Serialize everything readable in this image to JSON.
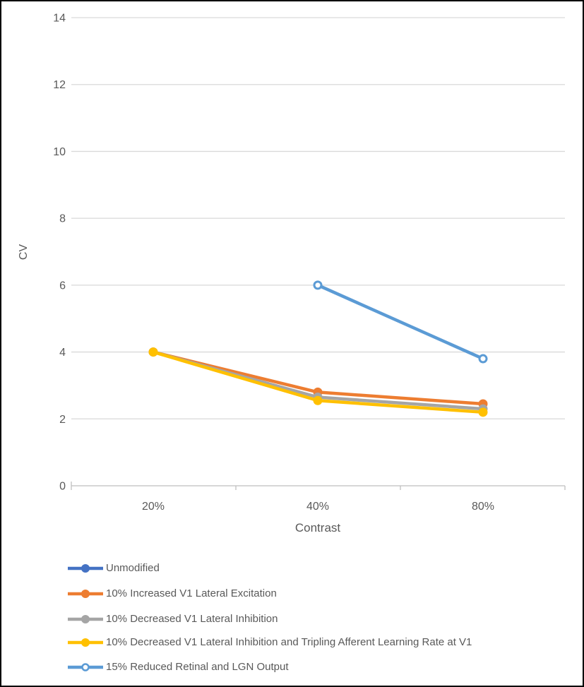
{
  "figure": {
    "background": "#ffffff",
    "border_color": "#000000"
  },
  "chart_data": {
    "type": "line",
    "title": "",
    "xlabel": "Contrast",
    "ylabel": "CV",
    "categories": [
      "20%",
      "40%",
      "80%"
    ],
    "ylim": [
      0,
      14
    ],
    "yticks": [
      0,
      2,
      4,
      6,
      8,
      10,
      12,
      14
    ],
    "grid": true,
    "legend_position": "bottom-left",
    "gridline_color": "#D9D9D9",
    "axis_line_color": "#BFBFBF",
    "axis_text_color": "#595959",
    "series": [
      {
        "name": "Unmodified",
        "color": "#4472C4",
        "marker": "filled-circle",
        "values": [
          null,
          null,
          null
        ]
      },
      {
        "name": "10% Increased V1 Lateral Excitation",
        "color": "#ED7D31",
        "marker": "filled-circle",
        "values": [
          4.0,
          2.8,
          2.45
        ]
      },
      {
        "name": "10% Decreased V1 Lateral Inhibition",
        "color": "#A5A5A5",
        "marker": "filled-circle",
        "values": [
          4.0,
          2.65,
          2.3
        ]
      },
      {
        "name": "10% Decreased V1 Lateral Inhibition and Tripling Afferent Learning Rate at V1",
        "color": "#FFC000",
        "marker": "filled-circle",
        "values": [
          4.0,
          2.55,
          2.2
        ]
      },
      {
        "name": "15% Reduced Retinal and LGN Output",
        "color": "#5B9BD5",
        "marker": "open-circle",
        "values": [
          null,
          6.0,
          3.8
        ]
      }
    ]
  }
}
